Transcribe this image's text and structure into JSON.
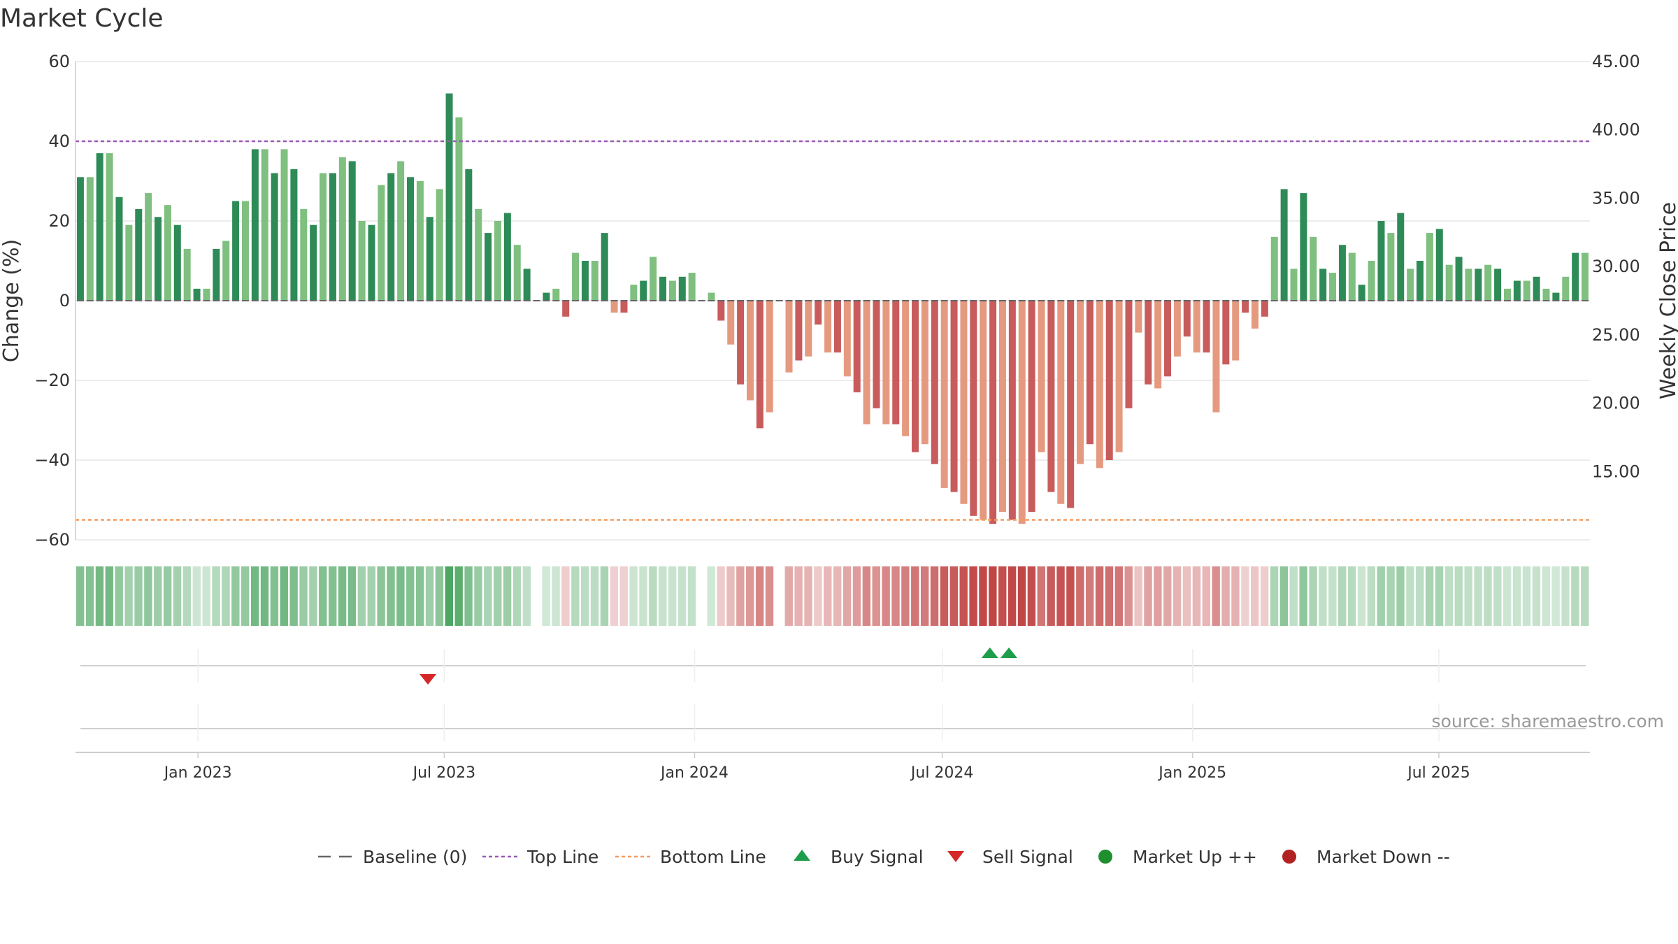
{
  "chart_data": {
    "type": "bar",
    "title": "Market Cycle",
    "ylabel_left": "Change (%)",
    "ylabel_right": "Weekly Close Price",
    "ylim_left": [
      -60,
      60
    ],
    "yticks_left": [
      60,
      40,
      20,
      0,
      -20,
      -40,
      -60
    ],
    "ytick_labels_left": [
      "60",
      "40",
      "20",
      "0",
      "−20",
      "−40",
      "−60"
    ],
    "ylim_right": [
      10,
      45
    ],
    "yticks_right": [
      45,
      40,
      35,
      30,
      25,
      20,
      15
    ],
    "ytick_labels_right": [
      "45.00",
      "40.00",
      "35.00",
      "30.00",
      "25.00",
      "20.00",
      "15.00"
    ],
    "x_start": "2022-10-03",
    "x_end": "2025-10-20",
    "x_tick_dates": [
      "2023-01-01",
      "2023-07-01",
      "2024-01-01",
      "2024-07-01",
      "2025-01-01",
      "2025-07-01"
    ],
    "x_tick_labels": [
      "Jan 2023",
      "Jul 2023",
      "Jan 2024",
      "Jul 2024",
      "Jan 2025",
      "Jul 2025"
    ],
    "top_line": 40,
    "bottom_line": -55,
    "grid": true,
    "values": [
      31,
      31,
      37,
      37,
      26,
      19,
      23,
      27,
      21,
      24,
      19,
      13,
      3,
      3,
      13,
      15,
      25,
      25,
      38,
      38,
      32,
      38,
      33,
      23,
      19,
      32,
      32,
      36,
      35,
      20,
      19,
      29,
      32,
      35,
      31,
      30,
      21,
      28,
      52,
      46,
      33,
      23,
      17,
      20,
      22,
      14,
      8,
      0,
      2,
      3,
      -4,
      12,
      10,
      10,
      17,
      -3,
      -3,
      4,
      5,
      11,
      6,
      5,
      6,
      7,
      0,
      2,
      -5,
      -11,
      -21,
      -25,
      -32,
      -28,
      0,
      -18,
      -15,
      -14,
      -6,
      -13,
      -13,
      -19,
      -23,
      -31,
      -27,
      -31,
      -31,
      -34,
      -38,
      -36,
      -41,
      -47,
      -48,
      -51,
      -54,
      -55,
      -56,
      -53,
      -55,
      -56,
      -53,
      -38,
      -48,
      -51,
      -52,
      -41,
      -36,
      -42,
      -40,
      -38,
      -27,
      -8,
      -21,
      -22,
      -19,
      -14,
      -9,
      -13,
      -13,
      -28,
      -16,
      -15,
      -3,
      -7,
      -4,
      16,
      28,
      8,
      27,
      16,
      8,
      7,
      14,
      12,
      4,
      10,
      20,
      17,
      22,
      8,
      10,
      17,
      18,
      9,
      11,
      8,
      8,
      9,
      8,
      3,
      5,
      5,
      6,
      3,
      2,
      6,
      12,
      12
    ],
    "sell_signals": [
      "2023-06-19"
    ],
    "buy_signals": [
      "2024-08-05",
      "2024-08-19"
    ],
    "legend": {
      "placement": "bottom-center",
      "items": [
        {
          "label": "Baseline (0)",
          "symbol": "dashed-line",
          "color": "#666666"
        },
        {
          "label": "Top Line",
          "symbol": "dotted-line",
          "color": "#9b59b6"
        },
        {
          "label": "Bottom Line",
          "symbol": "dotted-line",
          "color": "#f39c5f"
        },
        {
          "label": "Buy Signal",
          "symbol": "triangle-up",
          "color": "#1e9e4a"
        },
        {
          "label": "Sell Signal",
          "symbol": "triangle-down",
          "color": "#d62728"
        },
        {
          "label": "Market Up ++",
          "symbol": "circle",
          "color": "#1e8e2e"
        },
        {
          "label": "Market Down --",
          "symbol": "circle",
          "color": "#b22222"
        }
      ]
    },
    "source": "source: sharemaestro.com",
    "colors": {
      "up_dark": "#2e8b57",
      "up_light": "#7fbf7f",
      "down_dark": "#c85c5c",
      "down_light": "#e59a80",
      "top_line": "#9b59b6",
      "bottom_line": "#f39c5f"
    }
  }
}
